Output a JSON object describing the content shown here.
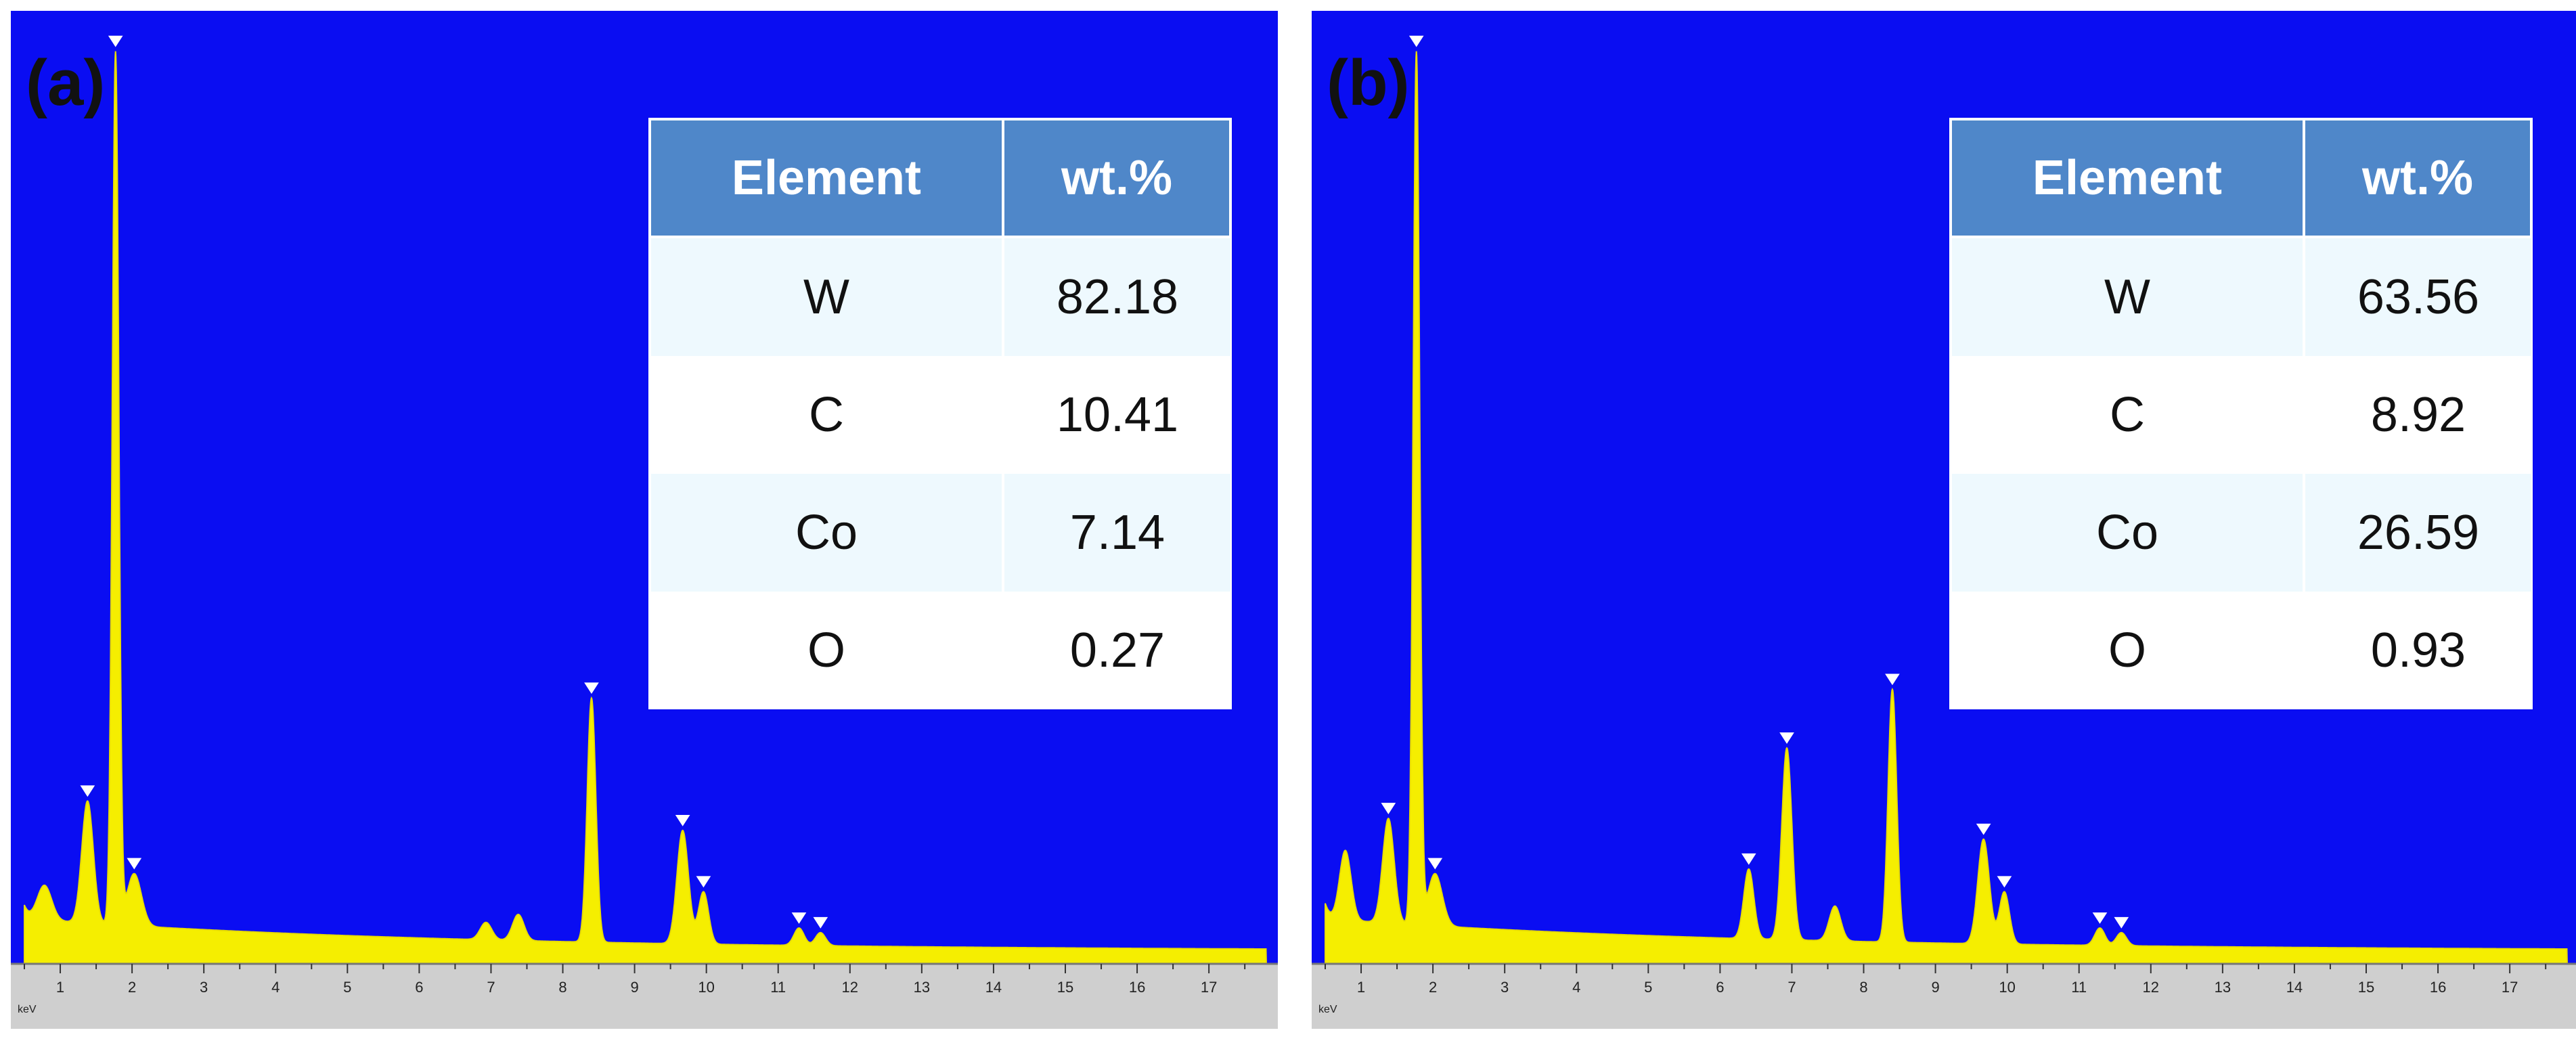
{
  "panels": [
    {
      "label": "(a)",
      "table": {
        "headers": [
          "Element",
          "wt.%"
        ],
        "rows": [
          [
            "W",
            "82.18"
          ],
          [
            "C",
            "10.41"
          ],
          [
            "Co",
            "7.14"
          ],
          [
            "O",
            "0.27"
          ]
        ]
      }
    },
    {
      "label": "(b)",
      "table": {
        "headers": [
          "Element",
          "wt.%"
        ],
        "rows": [
          [
            "W",
            "63.56"
          ],
          [
            "C",
            "8.92"
          ],
          [
            "Co",
            "26.59"
          ],
          [
            "O",
            "0.93"
          ]
        ]
      }
    }
  ],
  "chart_data": [
    {
      "type": "area",
      "xlabel": "keV",
      "xlim": [
        0.5,
        17.8
      ],
      "xticks": [
        1,
        2,
        3,
        4,
        5,
        6,
        7,
        8,
        9,
        10,
        11,
        12,
        13,
        14,
        15,
        16,
        17
      ],
      "baseline": 4,
      "peaks": [
        {
          "x": 0.3,
          "y": 6,
          "w": 0.12
        },
        {
          "x": 0.78,
          "y": 4,
          "w": 0.1
        },
        {
          "x": 1.38,
          "y": 14,
          "w": 0.08
        },
        {
          "x": 1.77,
          "y": 100,
          "w": 0.045
        },
        {
          "x": 2.03,
          "y": 6,
          "w": 0.1
        },
        {
          "x": 6.93,
          "y": 2,
          "w": 0.08
        },
        {
          "x": 7.38,
          "y": 3,
          "w": 0.08
        },
        {
          "x": 8.4,
          "y": 28,
          "w": 0.06
        },
        {
          "x": 9.67,
          "y": 13,
          "w": 0.08
        },
        {
          "x": 9.96,
          "y": 6,
          "w": 0.07
        },
        {
          "x": 11.29,
          "y": 2,
          "w": 0.07
        },
        {
          "x": 11.59,
          "y": 1.5,
          "w": 0.07
        }
      ],
      "peak_markers": [
        1.38,
        1.77,
        2.03,
        8.4,
        9.67,
        9.96,
        11.29,
        11.59
      ]
    },
    {
      "type": "area",
      "xlabel": "keV",
      "xlim": [
        0.5,
        17.8
      ],
      "xticks": [
        1,
        2,
        3,
        4,
        5,
        6,
        7,
        8,
        9,
        10,
        11,
        12,
        13,
        14,
        15,
        16,
        17
      ],
      "baseline": 4,
      "peaks": [
        {
          "x": 0.3,
          "y": 7,
          "w": 0.12
        },
        {
          "x": 0.78,
          "y": 8,
          "w": 0.08
        },
        {
          "x": 1.38,
          "y": 12,
          "w": 0.08
        },
        {
          "x": 1.77,
          "y": 100,
          "w": 0.045
        },
        {
          "x": 2.03,
          "y": 6,
          "w": 0.1
        },
        {
          "x": 6.4,
          "y": 8,
          "w": 0.07
        },
        {
          "x": 6.93,
          "y": 22,
          "w": 0.07
        },
        {
          "x": 7.6,
          "y": 4,
          "w": 0.08
        },
        {
          "x": 8.4,
          "y": 29,
          "w": 0.06
        },
        {
          "x": 9.67,
          "y": 12,
          "w": 0.08
        },
        {
          "x": 9.96,
          "y": 6,
          "w": 0.07
        },
        {
          "x": 11.29,
          "y": 2,
          "w": 0.07
        },
        {
          "x": 11.59,
          "y": 1.5,
          "w": 0.07
        }
      ],
      "peak_markers": [
        1.38,
        1.77,
        2.03,
        6.4,
        6.93,
        8.4,
        9.67,
        9.96,
        11.29,
        11.59
      ]
    }
  ]
}
